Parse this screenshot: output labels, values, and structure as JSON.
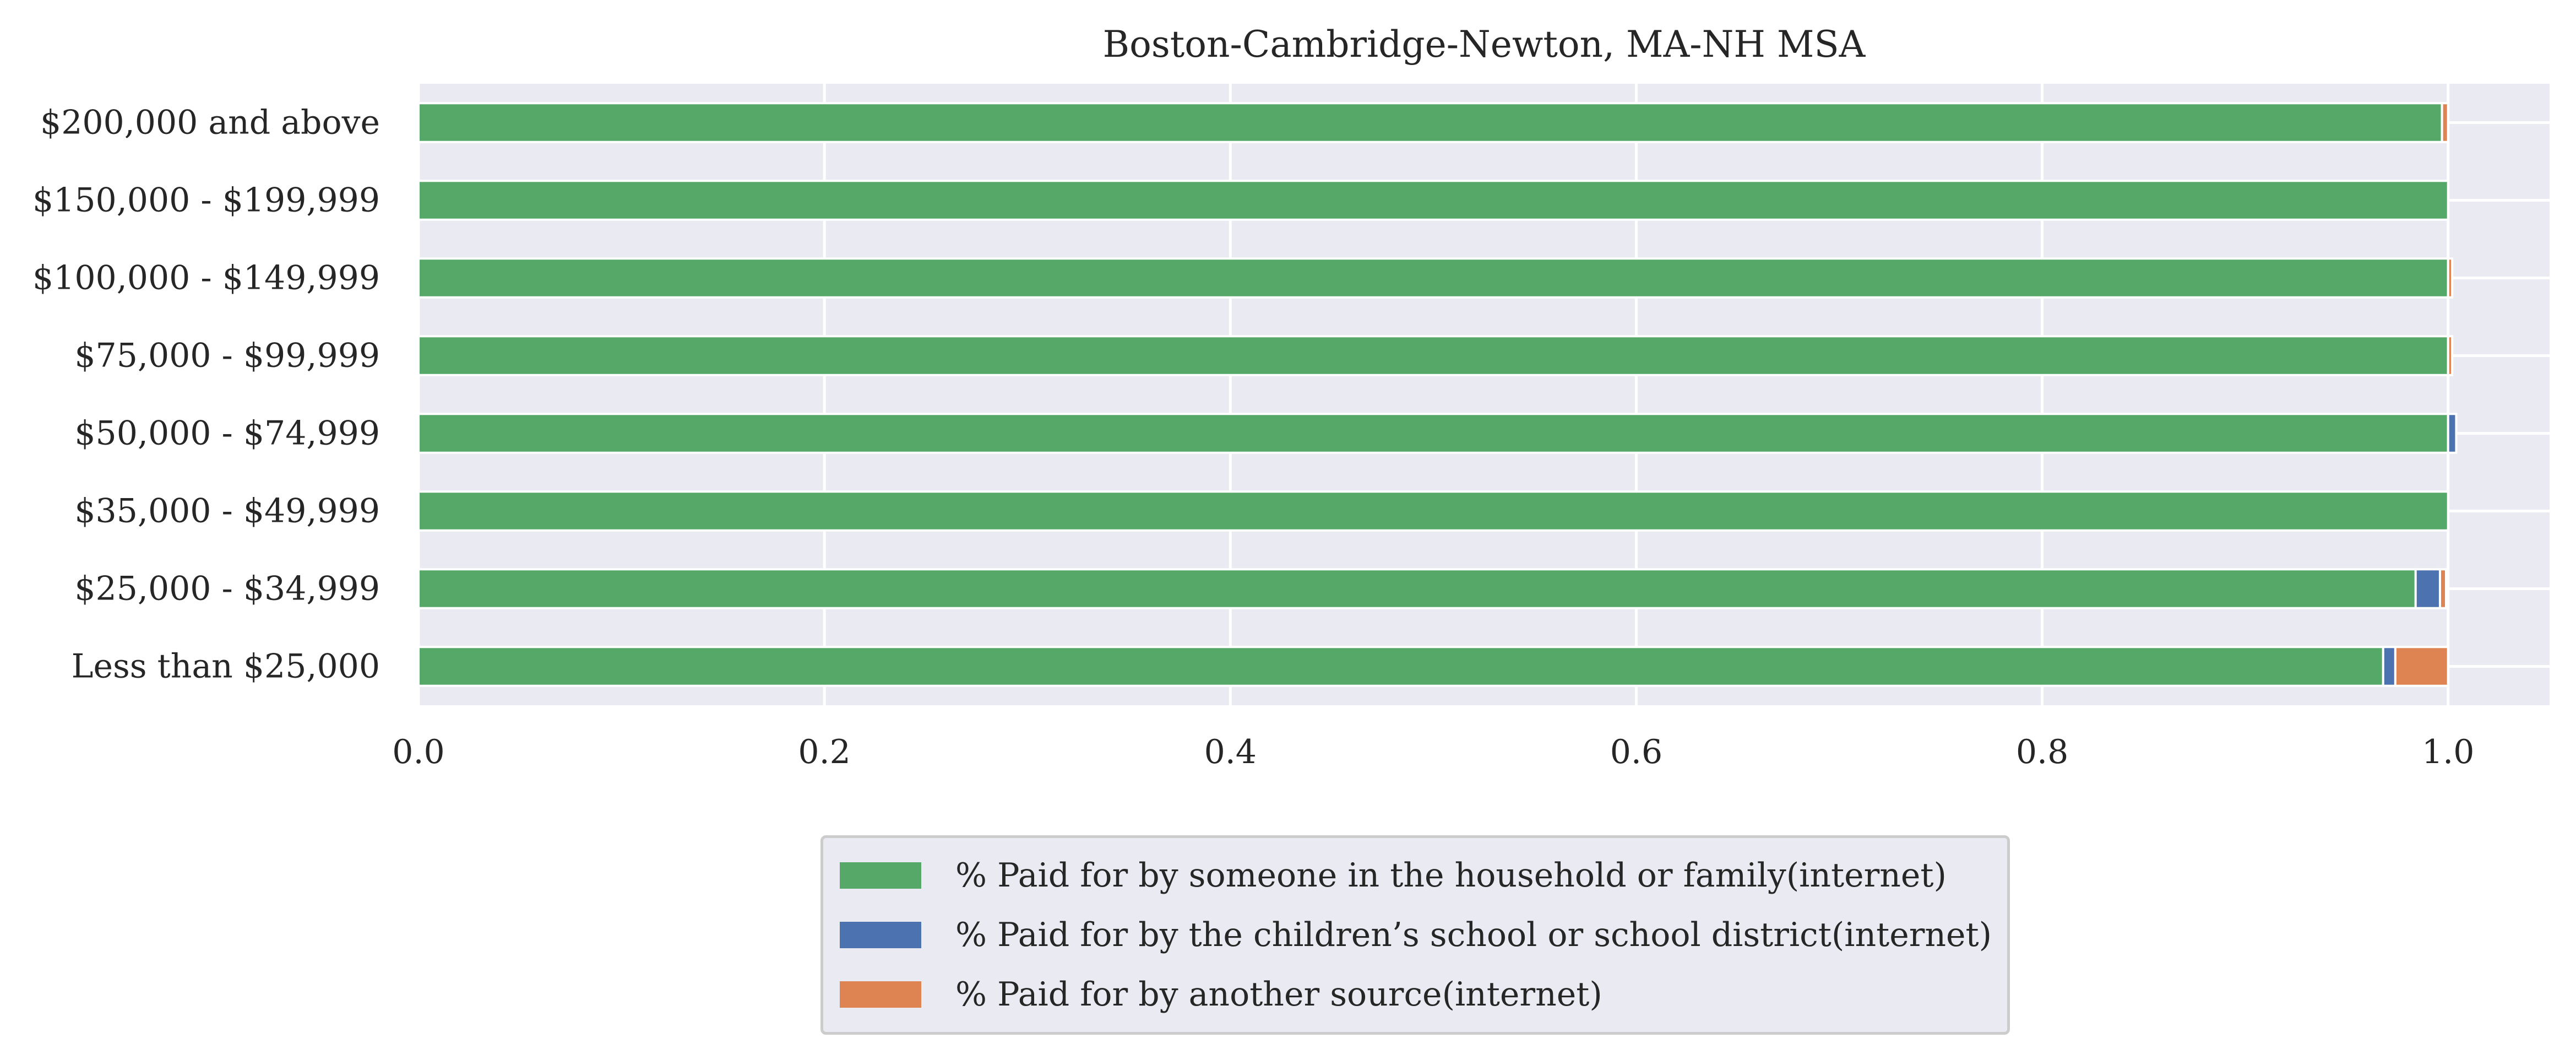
{
  "chart_data": {
    "type": "bar",
    "orientation": "horizontal",
    "stacked": true,
    "title": "Boston-Cambridge-Newton, MA-NH MSA",
    "xlabel": "",
    "ylabel": "",
    "xlim": [
      0,
      1.05
    ],
    "xticks": [
      "0.0",
      "0.2",
      "0.4",
      "0.6",
      "0.8",
      "1.0"
    ],
    "grid": true,
    "legend_position": "bottom-center",
    "categories": [
      "$200,000 and above",
      "$150,000 - $199,999",
      "$100,000 - $149,999",
      "$75,000 - $99,999",
      "$50,000 - $74,999",
      "$35,000 - $49,999",
      "$25,000 - $34,999",
      "Less than $25,000"
    ],
    "series": [
      {
        "name": "% Paid for by someone in the household or family(internet)",
        "color": "#55a868",
        "values": [
          0.997,
          1.0,
          1.0,
          1.0,
          1.0,
          1.0,
          0.984,
          0.968
        ]
      },
      {
        "name": "% Paid for by the children’s school or school district(internet)",
        "color": "#4c72b0",
        "values": [
          0.0,
          0.0,
          0.0,
          0.0,
          0.004,
          0.0,
          0.012,
          0.006
        ]
      },
      {
        "name": "% Paid for by another source(internet)",
        "color": "#dd8452",
        "values": [
          0.003,
          0.0,
          0.002,
          0.002,
          0.0,
          0.0,
          0.003,
          0.026
        ]
      }
    ]
  }
}
